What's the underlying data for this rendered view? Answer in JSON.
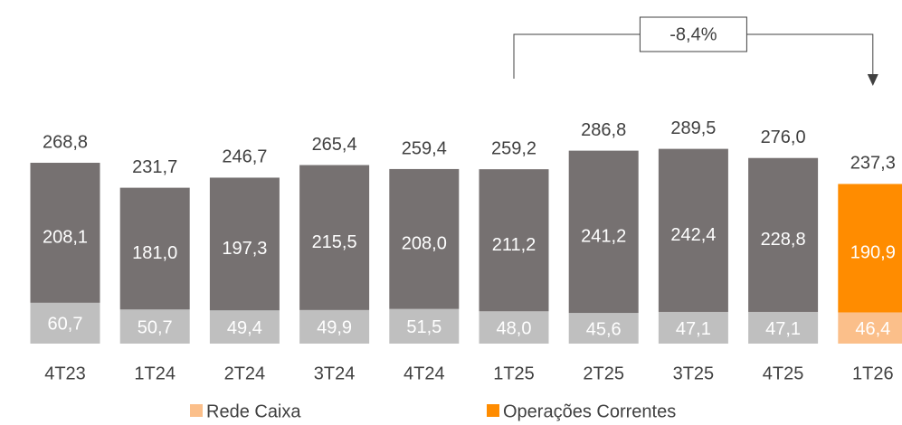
{
  "chart_data": {
    "type": "stacked_bar",
    "categories": [
      "4T23",
      "1T24",
      "2T24",
      "3T24",
      "4T24",
      "1T25",
      "2T25",
      "3T25",
      "4T25",
      "1T26"
    ],
    "series": [
      {
        "name": "Rede Caixa",
        "color": "#fbbf8a",
        "base_color": "#bfbfbf",
        "values": [
          60.7,
          50.7,
          49.4,
          49.9,
          51.5,
          48.0,
          45.6,
          47.1,
          47.1,
          46.4
        ],
        "value_labels": [
          "60,7",
          "50,7",
          "49,4",
          "49,9",
          "51,5",
          "48,0",
          "45,6",
          "47,1",
          "47,1",
          "46,4"
        ]
      },
      {
        "name": "Operações Correntes",
        "color": "#ff8c00",
        "base_color": "#767171",
        "values": [
          208.1,
          181.0,
          197.3,
          215.5,
          208.0,
          211.2,
          241.2,
          242.4,
          228.8,
          190.9
        ],
        "value_labels": [
          "208,1",
          "181,0",
          "197,3",
          "215,5",
          "208,0",
          "211,2",
          "241,2",
          "242,4",
          "228,8",
          "190,9"
        ]
      }
    ],
    "totals": [
      268.8,
      231.7,
      246.7,
      265.4,
      259.4,
      259.2,
      286.8,
      289.5,
      276.0,
      237.3
    ],
    "total_labels": [
      "268,8",
      "231,7",
      "246,7",
      "265,4",
      "259,4",
      "259,2",
      "286,8",
      "289,5",
      "276,0",
      "237,3"
    ],
    "highlight": "1T26",
    "annotation": {
      "value": -8.4,
      "label": "-8,4%",
      "from": "1T25",
      "to": "1T26"
    }
  }
}
